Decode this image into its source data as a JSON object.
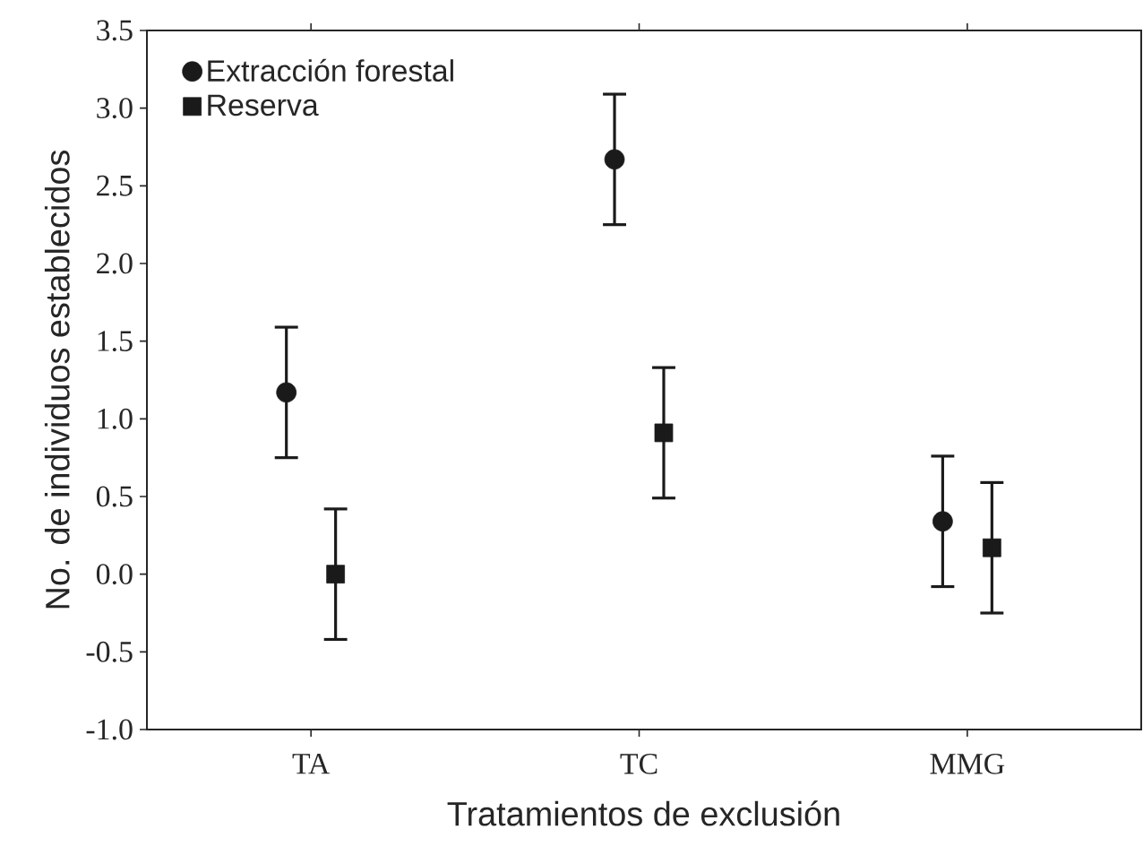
{
  "chart_data": {
    "type": "scatter",
    "xlabel": "Tratamientos de exclusión",
    "ylabel": "No. de individuos establecidos",
    "categories": [
      "TA",
      "TC",
      "MMG"
    ],
    "ylim": [
      -1.0,
      3.5
    ],
    "yticks": [
      {
        "value": -1.0,
        "label": "-1.0"
      },
      {
        "value": -0.5,
        "label": "-0.5"
      },
      {
        "value": 0,
        "label": "0.0"
      },
      {
        "value": 0.5,
        "label": "0.5"
      },
      {
        "value": 1.0,
        "label": "1.0"
      },
      {
        "value": 1.5,
        "label": "1.5"
      },
      {
        "value": 2.0,
        "label": "2.0"
      },
      {
        "value": 2.5,
        "label": "2.5"
      },
      {
        "value": 3.0,
        "label": "3.0"
      },
      {
        "value": 3.5,
        "label": "3.5"
      }
    ],
    "legend": "top left",
    "series": [
      {
        "name": "Extracción forestal",
        "color": "#1a1a1a",
        "marker": "circle",
        "values": [
          1.17,
          2.67,
          0.34
        ],
        "errors": [
          0.42,
          0.42,
          0.42
        ]
      },
      {
        "name": "Reserva",
        "color": "#1a1a1a",
        "marker": "square",
        "values": [
          0.0,
          0.91,
          0.17
        ],
        "errors": [
          0.42,
          0.42,
          0.42
        ]
      }
    ]
  }
}
